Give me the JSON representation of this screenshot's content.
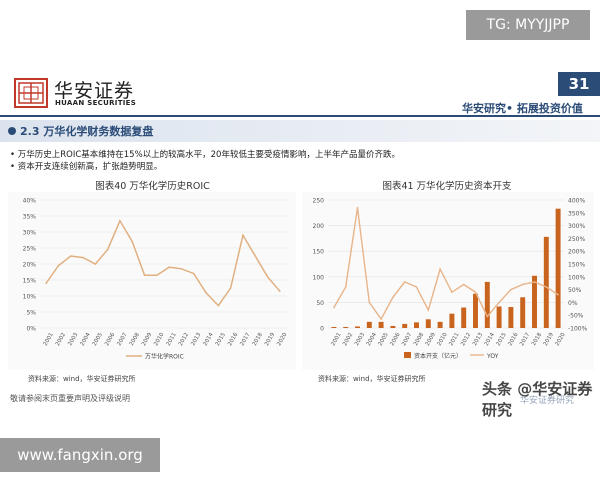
{
  "watermark_top": "TG: MYYJJPP",
  "logo": {
    "cn": "华安证券",
    "en": "HUAAN SECURITIES"
  },
  "page_number": "31",
  "slogan": "华安研究• 拓展投资价值",
  "section_title": "2.3 万华化学财务数据复盘",
  "bullets": [
    "• 万华历史上ROIC基本维持在15%以上的较高水平，20年较低主要受疫情影响，上半年产品量价齐跌。",
    "• 资本开支连续创新高，扩张趋势明显。"
  ],
  "left_chart": {
    "title": "图表40 万华化学历史ROIC",
    "legend": "万华化学ROIC",
    "source": "资料来源：wind，华安证券研究所"
  },
  "right_chart": {
    "title": "图表41 万华化学历史资本开支",
    "legend_bar": "资本开支（亿元）",
    "legend_line": "YOY",
    "source": "资料来源：wind，华安证券研究所"
  },
  "footer": "敬请参阅末页重要声明及评级说明",
  "watermark_bottom": "头条 @华安证券研究",
  "watermark_bottom2": "华安证券研究",
  "url_watermark": "www.fangxin.org",
  "colors": {
    "brand": "#2c4c78",
    "line": "#e0b080",
    "bar": "#c8641e",
    "yoy": "#e8b48a"
  },
  "chart_data": [
    {
      "type": "line",
      "x": [
        "2001",
        "2002",
        "2003",
        "2004",
        "2005",
        "2006",
        "2007",
        "2008",
        "2009",
        "2010",
        "2011",
        "2012",
        "2013",
        "2014",
        "2015",
        "2016",
        "2017",
        "2018",
        "2019",
        "2020"
      ],
      "series": [
        {
          "name": "万华化学ROIC",
          "values": [
            14,
            19.5,
            22.5,
            22,
            20,
            24.5,
            33.5,
            27,
            16.5,
            16.5,
            19,
            18.5,
            17,
            11,
            7,
            12.5,
            29,
            22.5,
            16,
            11.5
          ]
        }
      ],
      "ylim": [
        0,
        40
      ],
      "yticks": [
        "0%",
        "5%",
        "10%",
        "15%",
        "20%",
        "25%",
        "30%",
        "35%",
        "40%"
      ],
      "grid": true,
      "legend": "bottom"
    },
    {
      "type": "bar",
      "x": [
        "2001",
        "2002",
        "2003",
        "2004",
        "2005",
        "2006",
        "2007",
        "2008",
        "2009",
        "2010",
        "2011",
        "2012",
        "2013",
        "2014",
        "2015",
        "2016",
        "2017",
        "2018",
        "2019",
        "2020"
      ],
      "series": [
        {
          "name": "资本开支（亿元）",
          "type": "bar",
          "values": [
            2,
            2,
            3,
            12,
            12,
            4,
            8,
            11,
            17,
            12,
            28,
            40,
            67,
            90,
            42,
            41,
            60,
            102,
            178,
            233
          ]
        },
        {
          "name": "YOY",
          "type": "line",
          "axis": "right",
          "values": [
            -20,
            60,
            370,
            0,
            -65,
            20,
            80,
            60,
            -30,
            130,
            40,
            70,
            40,
            -55,
            0,
            50,
            70,
            80,
            60,
            30
          ]
        }
      ],
      "ylim": [
        0,
        250
      ],
      "yticks": [
        "0",
        "50",
        "100",
        "150",
        "200",
        "250"
      ],
      "y2lim": [
        -100,
        400
      ],
      "y2ticks": [
        "-100%",
        "-50%",
        "0%",
        "50%",
        "100%",
        "150%",
        "200%",
        "250%",
        "300%",
        "350%",
        "400%"
      ],
      "grid": true,
      "legend": "bottom"
    }
  ]
}
